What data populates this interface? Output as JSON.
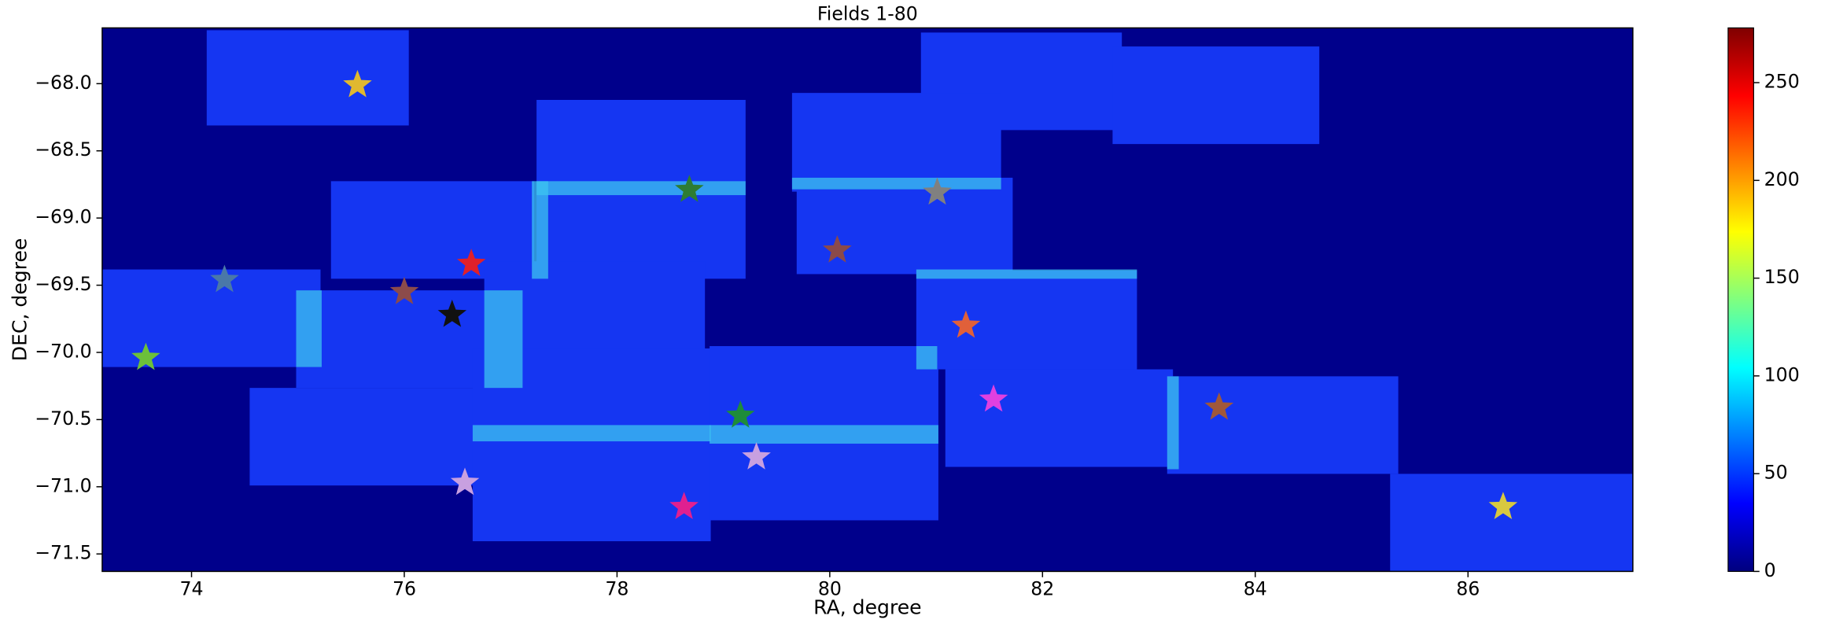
{
  "chart_data": {
    "type": "scatter",
    "title": "Fields 1-80",
    "x_label": "RA, degree",
    "y_label": "DEC, degree",
    "x": [
      75.56,
      78.68,
      81.01,
      80.07,
      74.31,
      76.63,
      76.0,
      76.45,
      81.28,
      73.57,
      79.16,
      81.54,
      83.66,
      79.31,
      76.57,
      78.63,
      86.33
    ],
    "y": [
      -68.01,
      -68.79,
      -68.81,
      -69.24,
      -69.46,
      -69.34,
      -69.55,
      -69.72,
      -69.8,
      -70.04,
      -70.47,
      -70.35,
      -70.41,
      -70.78,
      -70.97,
      -71.15,
      -71.15
    ],
    "colors": [
      "#e0b830",
      "#2e7d32",
      "#808080",
      "#8b4a4a",
      "#4a78a8",
      "#e0202a",
      "#8c4b4b",
      "#111111",
      "#e0603a",
      "#6cc03a",
      "#1e8c3a",
      "#e040e0",
      "#a0583a",
      "#c8a0e0",
      "#c8a0e0",
      "#e02090",
      "#d8c840"
    ],
    "xlim": [
      73.16,
      87.55
    ],
    "ylim": [
      -71.63,
      -67.585
    ],
    "xticks": [
      74,
      76,
      78,
      80,
      82,
      84,
      86
    ],
    "yticks": [
      {
        "value": -68.0,
        "label": "−68.0"
      },
      {
        "value": -68.5,
        "label": "−68.5"
      },
      {
        "value": -69.0,
        "label": "−69.0"
      },
      {
        "value": -69.5,
        "label": "−69.5"
      },
      {
        "value": -70.0,
        "label": "−70.0"
      },
      {
        "value": -70.5,
        "label": "−70.5"
      },
      {
        "value": -71.0,
        "label": "−71.0"
      },
      {
        "value": -71.5,
        "label": "−71.5"
      }
    ],
    "colorbar": {
      "lim": [
        0,
        278
      ],
      "ticks": [
        0,
        50,
        100,
        150,
        200,
        250
      ]
    }
  }
}
